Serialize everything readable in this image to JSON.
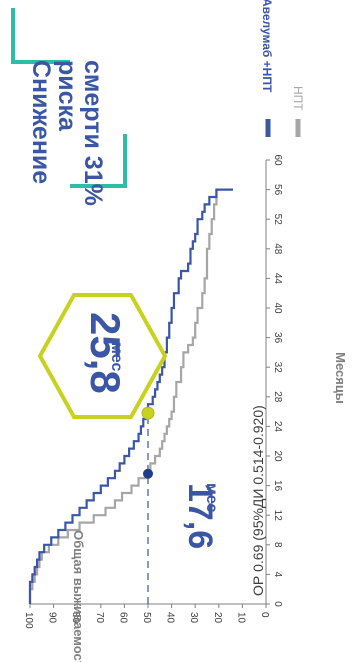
{
  "headline": {
    "text_line1": "Снижение",
    "text_line2": "риска",
    "text_line3": "смерти 31%"
  },
  "callouts": {
    "median_treatment_value": "25,8",
    "median_treatment_unit": "мес",
    "median_control_value": "17,6",
    "median_control_unit": "мес",
    "hazard_ratio_text": "ОР 0.69 (95%ДИ 0.514-0.920)"
  },
  "colors": {
    "treatment": "#3a56a4",
    "control": "#a6a6a6",
    "accent_teal": "#2bbfa7",
    "accent_lime": "#c8d21e",
    "text_blue": "#3a56a4",
    "axis_gray": "#808080"
  },
  "chart_data": {
    "type": "line",
    "title": "",
    "xlabel": "Месяцы",
    "ylabel": "Общая выживаемость, %",
    "xlim": [
      0,
      60
    ],
    "ylim": [
      0,
      100
    ],
    "xticks": [
      0,
      4,
      8,
      12,
      16,
      20,
      24,
      28,
      32,
      36,
      40,
      44,
      48,
      52,
      56,
      60
    ],
    "yticks": [
      0,
      10,
      20,
      30,
      40,
      50,
      60,
      70,
      80,
      90,
      100
    ],
    "legend_position": "top-right",
    "reference_y": 50,
    "medians": [
      {
        "series": "Авелумаб +НПТ",
        "x": 25.8,
        "y": 50
      },
      {
        "series": "НПТ",
        "x": 17.6,
        "y": 50
      }
    ],
    "series": [
      {
        "name": "Авелумаб +НПТ",
        "x": [
          0,
          1,
          2,
          3,
          4,
          5,
          6,
          7,
          8,
          9,
          10,
          11,
          12,
          13,
          14,
          15,
          16,
          17,
          18,
          19,
          20,
          21,
          22,
          23,
          24,
          25,
          25.8,
          27,
          28,
          29,
          30,
          31,
          32,
          34,
          36,
          38,
          40,
          42,
          44,
          45,
          46,
          48,
          49,
          50,
          52,
          53,
          54,
          55,
          56,
          56
        ],
        "y": [
          100,
          100,
          100,
          99,
          98,
          97,
          96,
          94,
          91,
          88,
          85,
          82,
          79,
          76,
          73,
          70,
          67,
          64,
          62,
          60,
          58,
          56,
          54,
          53,
          52,
          51,
          50,
          48,
          47,
          46,
          45,
          44,
          43,
          42,
          41,
          40,
          39,
          37,
          36,
          33,
          32,
          31,
          30,
          29,
          27,
          26,
          24,
          21,
          20,
          14
        ]
      },
      {
        "name": "НПТ",
        "x": [
          0,
          1,
          2,
          3,
          4,
          5,
          6,
          7,
          8,
          9,
          10,
          11,
          12,
          13,
          14,
          15,
          16,
          17,
          17.6,
          18,
          19,
          20,
          21,
          22,
          23,
          24,
          25,
          26,
          28,
          30,
          32,
          34,
          35,
          36,
          38,
          40,
          42,
          44,
          46,
          48,
          50,
          52,
          54,
          56
        ],
        "y": [
          100,
          100,
          99,
          98,
          97,
          96,
          95,
          92,
          88,
          84,
          79,
          73,
          68,
          64,
          61,
          57,
          54,
          51,
          50,
          49,
          47,
          45,
          44,
          43,
          42,
          41,
          40,
          39,
          38,
          36,
          35,
          33,
          31,
          30,
          29,
          27,
          26,
          25,
          25,
          24,
          23,
          22,
          21,
          20
        ]
      }
    ]
  }
}
